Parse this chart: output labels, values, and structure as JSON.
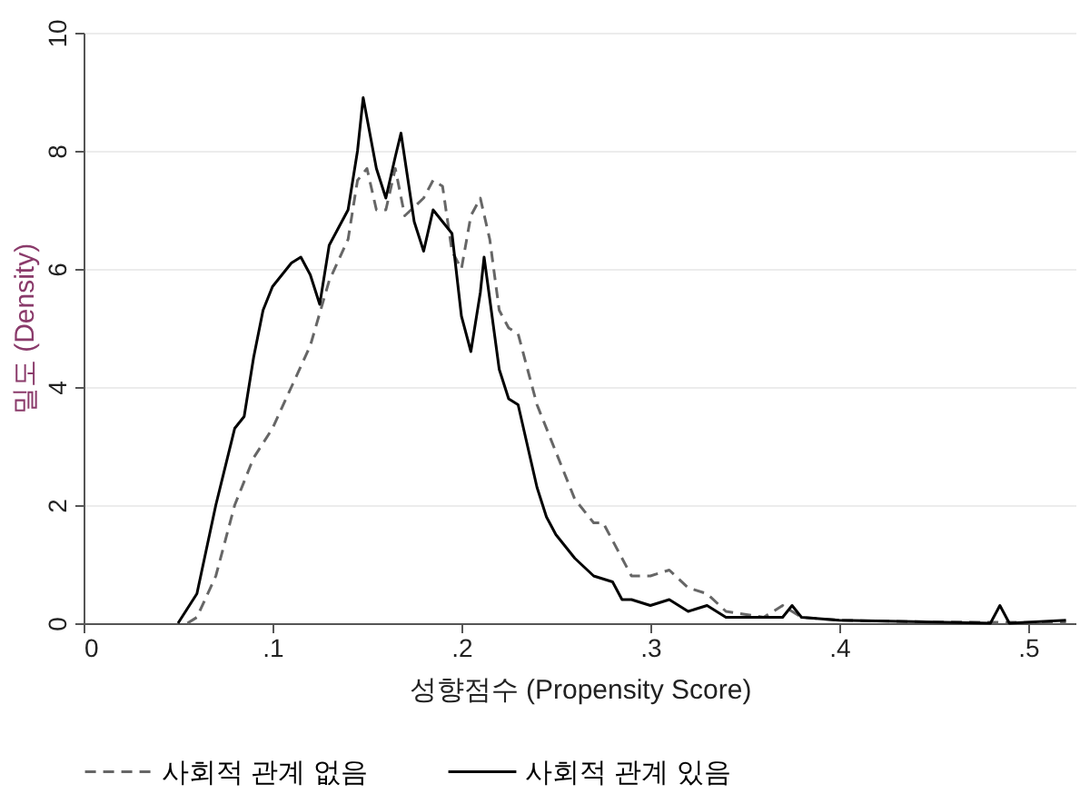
{
  "chart_data": {
    "type": "line",
    "xlabel": "성향점수 (Propensity Score)",
    "ylabel": "밀도 (Density)",
    "xlim": [
      0,
      0.525
    ],
    "xticks": [
      0,
      {
        "value": 0.1,
        "label": ".1"
      },
      {
        "value": 0.2,
        "label": ".2"
      },
      {
        "value": 0.3,
        "label": ".3"
      },
      {
        "value": 0.4,
        "label": ".4"
      },
      {
        "value": 0.5,
        "label": ".5"
      }
    ],
    "ylim": [
      0,
      10
    ],
    "yticks": [
      0,
      2,
      4,
      6,
      8,
      10
    ],
    "grid": "y",
    "legend": "bottom",
    "series": [
      {
        "name": "사회적 관계 없음",
        "color": "#666666",
        "line_style": "dashed",
        "x": [
          0.055,
          0.06,
          0.07,
          0.08,
          0.09,
          0.1,
          0.11,
          0.12,
          0.13,
          0.14,
          0.145,
          0.15,
          0.155,
          0.16,
          0.165,
          0.17,
          0.18,
          0.185,
          0.19,
          0.195,
          0.2,
          0.205,
          0.21,
          0.215,
          0.22,
          0.225,
          0.23,
          0.24,
          0.25,
          0.26,
          0.27,
          0.275,
          0.29,
          0.3,
          0.31,
          0.32,
          0.33,
          0.34,
          0.35,
          0.36,
          0.37,
          0.38,
          0.4,
          0.45,
          0.52
        ],
        "values": [
          0,
          0.1,
          0.8,
          2.0,
          2.8,
          3.3,
          4.0,
          4.7,
          5.8,
          6.5,
          7.5,
          7.7,
          7.0,
          7.0,
          7.7,
          6.9,
          7.2,
          7.5,
          7.4,
          6.3,
          6.0,
          6.9,
          7.2,
          6.5,
          5.3,
          5.0,
          4.9,
          3.7,
          2.9,
          2.1,
          1.7,
          1.7,
          0.8,
          0.8,
          0.9,
          0.6,
          0.5,
          0.2,
          0.15,
          0.1,
          0.3,
          0.1,
          0.05,
          0.02,
          0.01
        ]
      },
      {
        "name": "사회적 관계 있음",
        "color": "#000000",
        "line_style": "solid",
        "x": [
          0.05,
          0.06,
          0.07,
          0.08,
          0.085,
          0.09,
          0.095,
          0.1,
          0.11,
          0.115,
          0.12,
          0.125,
          0.13,
          0.135,
          0.14,
          0.145,
          0.148,
          0.155,
          0.16,
          0.165,
          0.168,
          0.175,
          0.18,
          0.185,
          0.19,
          0.195,
          0.2,
          0.205,
          0.21,
          0.212,
          0.22,
          0.225,
          0.23,
          0.24,
          0.245,
          0.25,
          0.26,
          0.27,
          0.28,
          0.285,
          0.29,
          0.3,
          0.31,
          0.32,
          0.33,
          0.34,
          0.37,
          0.375,
          0.38,
          0.4,
          0.45,
          0.48,
          0.485,
          0.49,
          0.52
        ],
        "values": [
          0,
          0.5,
          2.0,
          3.3,
          3.5,
          4.5,
          5.3,
          5.7,
          6.1,
          6.2,
          5.9,
          5.4,
          6.4,
          6.7,
          7.0,
          8.0,
          8.9,
          7.7,
          7.2,
          7.9,
          8.3,
          6.8,
          6.3,
          7.0,
          6.8,
          6.6,
          5.2,
          4.6,
          5.6,
          6.2,
          4.3,
          3.8,
          3.7,
          2.3,
          1.8,
          1.5,
          1.1,
          0.8,
          0.7,
          0.4,
          0.4,
          0.3,
          0.4,
          0.2,
          0.3,
          0.1,
          0.1,
          0.3,
          0.1,
          0.05,
          0.02,
          0,
          0.3,
          0,
          0.05
        ]
      }
    ]
  }
}
